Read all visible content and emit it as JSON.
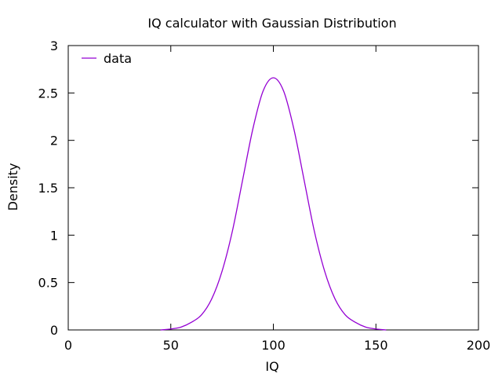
{
  "chart_data": {
    "type": "line",
    "title": "IQ calculator with Gaussian Distribution",
    "xlabel": "IQ",
    "ylabel": "Density",
    "xlim": [
      0,
      200
    ],
    "ylim": [
      0,
      3
    ],
    "xticks": [
      0,
      50,
      100,
      150,
      200
    ],
    "yticks": [
      0,
      0.5,
      1,
      1.5,
      2,
      2.5,
      3
    ],
    "ytick_labels": [
      "0",
      "0.5",
      "1",
      "1.5",
      "2",
      "2.5",
      "3"
    ],
    "xtick_labels": [
      "0",
      "50",
      "100",
      "150",
      "200"
    ],
    "grid": false,
    "legend": "top-left",
    "series": [
      {
        "name": "data",
        "color": "#9400d3",
        "x": [
          45,
          50,
          55,
          60,
          65,
          70,
          75,
          80,
          85,
          90,
          95,
          100,
          105,
          110,
          115,
          120,
          125,
          130,
          135,
          140,
          145,
          150,
          155
        ],
        "y": [
          0.0,
          0.01,
          0.03,
          0.08,
          0.16,
          0.33,
          0.62,
          1.04,
          1.58,
          2.12,
          2.52,
          2.66,
          2.52,
          2.12,
          1.58,
          1.04,
          0.62,
          0.33,
          0.16,
          0.08,
          0.03,
          0.01,
          0.0
        ]
      }
    ]
  }
}
